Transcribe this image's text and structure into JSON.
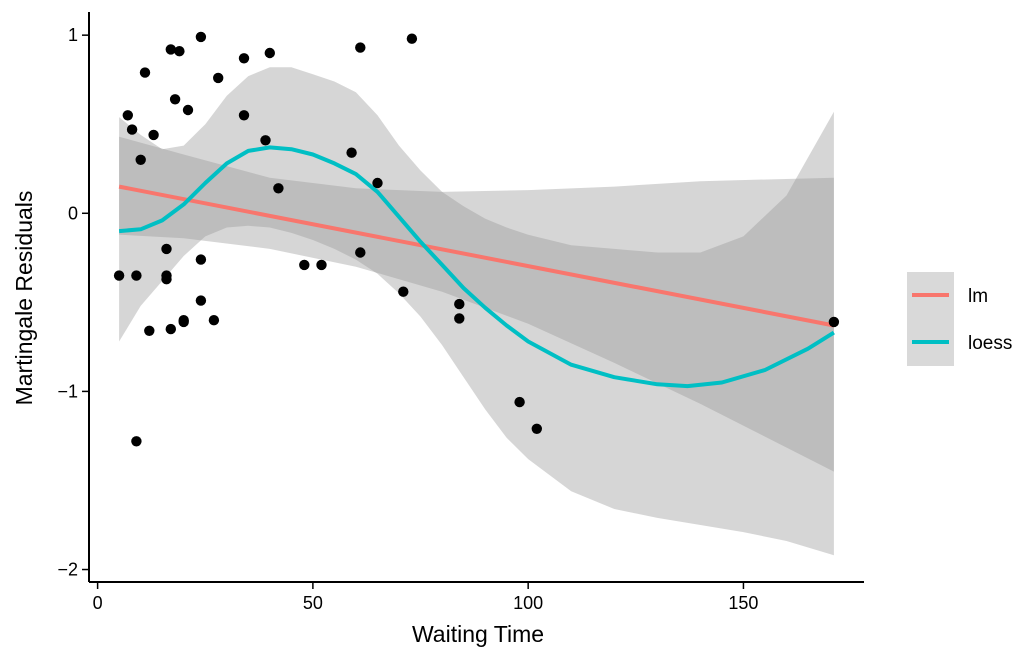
{
  "chart_data": {
    "type": "scatter",
    "title": "",
    "xlabel": "Waiting Time",
    "ylabel": "Martingale Residuals",
    "xlim": [
      -2,
      178
    ],
    "ylim": [
      -2.07,
      1.13
    ],
    "x_ticks": [
      0,
      50,
      100,
      150
    ],
    "y_ticks": [
      1,
      0,
      -1,
      -2
    ],
    "x_tick_labels": [
      "0",
      "50",
      "100",
      "150"
    ],
    "y_tick_labels": [
      "1",
      "0",
      "−1",
      "−2"
    ],
    "grid": false,
    "legend_position": "right",
    "points": [
      {
        "x": 5,
        "y": -0.35
      },
      {
        "x": 7,
        "y": 0.55
      },
      {
        "x": 8,
        "y": 0.47
      },
      {
        "x": 9,
        "y": -1.28
      },
      {
        "x": 9,
        "y": -0.35
      },
      {
        "x": 10,
        "y": 0.3
      },
      {
        "x": 11,
        "y": 0.79
      },
      {
        "x": 12,
        "y": -0.66
      },
      {
        "x": 13,
        "y": 0.44
      },
      {
        "x": 16,
        "y": -0.2
      },
      {
        "x": 16,
        "y": -0.35
      },
      {
        "x": 16,
        "y": -0.37
      },
      {
        "x": 17,
        "y": 0.92
      },
      {
        "x": 17,
        "y": -0.65
      },
      {
        "x": 18,
        "y": 0.64
      },
      {
        "x": 19,
        "y": 0.91
      },
      {
        "x": 20,
        "y": -0.6
      },
      {
        "x": 20,
        "y": -0.61
      },
      {
        "x": 21,
        "y": 0.58
      },
      {
        "x": 24,
        "y": 0.99
      },
      {
        "x": 24,
        "y": -0.26
      },
      {
        "x": 24,
        "y": -0.49
      },
      {
        "x": 27,
        "y": -0.6
      },
      {
        "x": 28,
        "y": 0.76
      },
      {
        "x": 34,
        "y": 0.87
      },
      {
        "x": 34,
        "y": 0.55
      },
      {
        "x": 39,
        "y": 0.41
      },
      {
        "x": 40,
        "y": 0.9
      },
      {
        "x": 42,
        "y": 0.14
      },
      {
        "x": 48,
        "y": -0.29
      },
      {
        "x": 52,
        "y": -0.29
      },
      {
        "x": 59,
        "y": 0.34
      },
      {
        "x": 61,
        "y": 0.93
      },
      {
        "x": 61,
        "y": -0.22
      },
      {
        "x": 65,
        "y": 0.17
      },
      {
        "x": 71,
        "y": -0.44
      },
      {
        "x": 73,
        "y": 0.98
      },
      {
        "x": 84,
        "y": -0.51
      },
      {
        "x": 84,
        "y": -0.59
      },
      {
        "x": 98,
        "y": -1.06
      },
      {
        "x": 102,
        "y": -1.21
      },
      {
        "x": 171,
        "y": -0.61
      }
    ],
    "series": [
      {
        "name": "lm",
        "color": "#F8766D",
        "x": [
          5,
          171
        ],
        "y": [
          0.15,
          -0.63
        ],
        "ci_lower": [
          {
            "x": 5,
            "y": -0.12
          },
          {
            "x": 20,
            "y": -0.14
          },
          {
            "x": 40,
            "y": -0.2
          },
          {
            "x": 60,
            "y": -0.3
          },
          {
            "x": 80,
            "y": -0.44
          },
          {
            "x": 100,
            "y": -0.62
          },
          {
            "x": 120,
            "y": -0.84
          },
          {
            "x": 140,
            "y": -1.07
          },
          {
            "x": 171,
            "y": -1.45
          }
        ],
        "ci_upper": [
          {
            "x": 5,
            "y": 0.43
          },
          {
            "x": 20,
            "y": 0.33
          },
          {
            "x": 40,
            "y": 0.2
          },
          {
            "x": 60,
            "y": 0.14
          },
          {
            "x": 80,
            "y": 0.12
          },
          {
            "x": 100,
            "y": 0.13
          },
          {
            "x": 120,
            "y": 0.15
          },
          {
            "x": 140,
            "y": 0.18
          },
          {
            "x": 171,
            "y": 0.2
          }
        ]
      },
      {
        "name": "loess",
        "color": "#00BFC4",
        "x": [
          5,
          10,
          15,
          20,
          25,
          30,
          35,
          40,
          45,
          50,
          55,
          60,
          65,
          70,
          75,
          80,
          85,
          90,
          95,
          100,
          110,
          120,
          130,
          137,
          145,
          155,
          165,
          171
        ],
        "y": [
          -0.1,
          -0.09,
          -0.04,
          0.05,
          0.17,
          0.28,
          0.35,
          0.37,
          0.36,
          0.33,
          0.28,
          0.22,
          0.12,
          -0.02,
          -0.16,
          -0.29,
          -0.42,
          -0.53,
          -0.63,
          -0.72,
          -0.85,
          -0.92,
          -0.96,
          -0.97,
          -0.95,
          -0.88,
          -0.76,
          -0.67
        ],
        "ci_lower": [
          {
            "x": 5,
            "y": -0.72
          },
          {
            "x": 10,
            "y": -0.52
          },
          {
            "x": 15,
            "y": -0.38
          },
          {
            "x": 20,
            "y": -0.24
          },
          {
            "x": 25,
            "y": -0.13
          },
          {
            "x": 30,
            "y": -0.08
          },
          {
            "x": 35,
            "y": -0.07
          },
          {
            "x": 40,
            "y": -0.08
          },
          {
            "x": 45,
            "y": -0.11
          },
          {
            "x": 50,
            "y": -0.15
          },
          {
            "x": 55,
            "y": -0.2
          },
          {
            "x": 60,
            "y": -0.26
          },
          {
            "x": 65,
            "y": -0.34
          },
          {
            "x": 70,
            "y": -0.45
          },
          {
            "x": 75,
            "y": -0.58
          },
          {
            "x": 80,
            "y": -0.74
          },
          {
            "x": 85,
            "y": -0.92
          },
          {
            "x": 90,
            "y": -1.1
          },
          {
            "x": 95,
            "y": -1.26
          },
          {
            "x": 100,
            "y": -1.38
          },
          {
            "x": 110,
            "y": -1.56
          },
          {
            "x": 120,
            "y": -1.66
          },
          {
            "x": 130,
            "y": -1.71
          },
          {
            "x": 140,
            "y": -1.75
          },
          {
            "x": 150,
            "y": -1.79
          },
          {
            "x": 160,
            "y": -1.84
          },
          {
            "x": 171,
            "y": -1.92
          }
        ],
        "ci_upper": [
          {
            "x": 5,
            "y": 0.54
          },
          {
            "x": 10,
            "y": 0.44
          },
          {
            "x": 15,
            "y": 0.36
          },
          {
            "x": 20,
            "y": 0.38
          },
          {
            "x": 25,
            "y": 0.5
          },
          {
            "x": 30,
            "y": 0.66
          },
          {
            "x": 35,
            "y": 0.77
          },
          {
            "x": 40,
            "y": 0.82
          },
          {
            "x": 45,
            "y": 0.82
          },
          {
            "x": 50,
            "y": 0.78
          },
          {
            "x": 55,
            "y": 0.74
          },
          {
            "x": 60,
            "y": 0.68
          },
          {
            "x": 65,
            "y": 0.55
          },
          {
            "x": 70,
            "y": 0.38
          },
          {
            "x": 75,
            "y": 0.24
          },
          {
            "x": 80,
            "y": 0.12
          },
          {
            "x": 85,
            "y": 0.04
          },
          {
            "x": 90,
            "y": -0.03
          },
          {
            "x": 95,
            "y": -0.08
          },
          {
            "x": 100,
            "y": -0.12
          },
          {
            "x": 110,
            "y": -0.18
          },
          {
            "x": 120,
            "y": -0.2
          },
          {
            "x": 130,
            "y": -0.22
          },
          {
            "x": 140,
            "y": -0.22
          },
          {
            "x": 150,
            "y": -0.13
          },
          {
            "x": 160,
            "y": 0.1
          },
          {
            "x": 171,
            "y": 0.57
          }
        ]
      }
    ],
    "legend": [
      {
        "label": "lm",
        "color": "#F8766D"
      },
      {
        "label": "loess",
        "color": "#00BFC4"
      }
    ]
  }
}
